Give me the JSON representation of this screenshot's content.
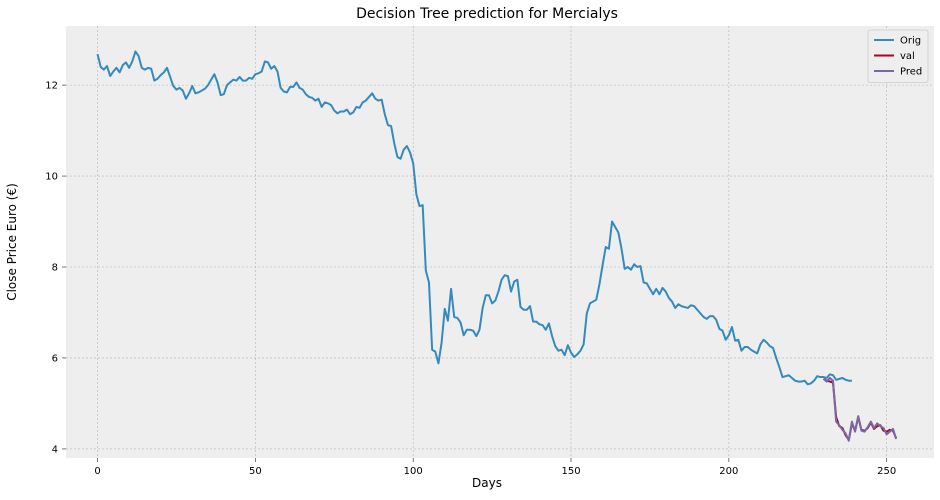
{
  "chart_data": {
    "type": "line",
    "title": "Decision Tree prediction for Mercialys",
    "xlabel": "Days",
    "ylabel": "Close Price Euro (€)",
    "xlim": [
      -10,
      265
    ],
    "ylim": [
      3.8,
      13.3
    ],
    "xticks": [
      0,
      50,
      100,
      150,
      200,
      250
    ],
    "yticks": [
      4,
      6,
      8,
      10,
      12
    ],
    "grid": true,
    "legend_position": "top-right",
    "series": [
      {
        "name": "Orig",
        "color": "#348ABD",
        "x_start": 0,
        "values": [
          12.68,
          12.4,
          12.34,
          12.42,
          12.2,
          12.3,
          12.38,
          12.28,
          12.44,
          12.5,
          12.38,
          12.52,
          12.74,
          12.64,
          12.38,
          12.34,
          12.38,
          12.36,
          12.1,
          12.14,
          12.22,
          12.28,
          12.38,
          12.18,
          11.98,
          11.9,
          11.94,
          11.88,
          11.7,
          11.82,
          11.98,
          11.82,
          11.84,
          11.88,
          11.92,
          12.0,
          12.12,
          12.24,
          12.06,
          11.78,
          11.8,
          12.0,
          12.06,
          12.12,
          12.1,
          12.18,
          12.1,
          12.1,
          12.16,
          12.14,
          12.24,
          12.26,
          12.3,
          12.52,
          12.5,
          12.36,
          12.42,
          12.3,
          11.94,
          11.86,
          11.84,
          11.96,
          11.96,
          12.06,
          11.94,
          11.9,
          11.8,
          11.74,
          11.72,
          11.66,
          11.7,
          11.52,
          11.62,
          11.6,
          11.56,
          11.44,
          11.38,
          11.42,
          11.42,
          11.46,
          11.36,
          11.4,
          11.52,
          11.5,
          11.62,
          11.66,
          11.74,
          11.82,
          11.7,
          11.66,
          11.68,
          11.36,
          11.12,
          11.1,
          10.72,
          10.42,
          10.38,
          10.58,
          10.66,
          10.52,
          10.28,
          9.6,
          9.34,
          9.36,
          7.92,
          7.66,
          6.18,
          6.14,
          5.88,
          6.34,
          7.08,
          6.82,
          7.52,
          6.9,
          6.88,
          6.78,
          6.5,
          6.62,
          6.62,
          6.6,
          6.48,
          6.62,
          7.1,
          7.38,
          7.38,
          7.2,
          7.26,
          7.46,
          7.72,
          7.82,
          7.8,
          7.46,
          7.68,
          7.72,
          7.12,
          7.06,
          7.06,
          7.14,
          6.8,
          6.8,
          6.74,
          6.72,
          6.62,
          6.76,
          6.48,
          6.26,
          6.16,
          6.18,
          6.06,
          6.28,
          6.12,
          6.02,
          6.08,
          6.16,
          6.3,
          6.98,
          7.2,
          7.24,
          7.28,
          7.62,
          8.04,
          8.44,
          8.4,
          9.0,
          8.88,
          8.76,
          8.4,
          7.96,
          8.0,
          7.94,
          8.06,
          8.0,
          8.02,
          7.66,
          7.64,
          7.52,
          7.4,
          7.52,
          7.4,
          7.54,
          7.46,
          7.32,
          7.24,
          7.1,
          7.18,
          7.14,
          7.12,
          7.1,
          7.16,
          7.14,
          7.06,
          6.98,
          6.9,
          6.86,
          6.92,
          6.92,
          6.84,
          6.64,
          6.6,
          6.4,
          6.5,
          6.68,
          6.38,
          6.4,
          6.16,
          6.24,
          6.24,
          6.18,
          6.14,
          6.1,
          6.3,
          6.4,
          6.34,
          6.26,
          6.22,
          6.0,
          5.8,
          5.58,
          5.6,
          5.62,
          5.56,
          5.5,
          5.48,
          5.48,
          5.5,
          5.42,
          5.44,
          5.5,
          5.6,
          5.58,
          5.58,
          5.56,
          5.64,
          5.62,
          5.52,
          5.54,
          5.56,
          5.52,
          5.5,
          5.5
        ]
      },
      {
        "name": "val",
        "color": "#A60628",
        "x_start": 230,
        "values": [
          5.54,
          5.5,
          5.48,
          5.46,
          4.7,
          4.5,
          4.46,
          4.3,
          4.2,
          4.56,
          4.4,
          4.7,
          4.42,
          4.4,
          4.46,
          4.58,
          4.44,
          4.5,
          4.52,
          4.4,
          4.38,
          4.42,
          4.4,
          4.24
        ]
      },
      {
        "name": "Pred",
        "color": "#7A68A6",
        "x_start": 230,
        "values": [
          5.54,
          5.48,
          5.56,
          5.5,
          4.6,
          4.52,
          4.42,
          4.34,
          4.18,
          4.6,
          4.38,
          4.72,
          4.4,
          4.38,
          4.48,
          4.6,
          4.46,
          4.56,
          4.5,
          4.46,
          4.32,
          4.38,
          4.44,
          4.22
        ]
      }
    ]
  }
}
